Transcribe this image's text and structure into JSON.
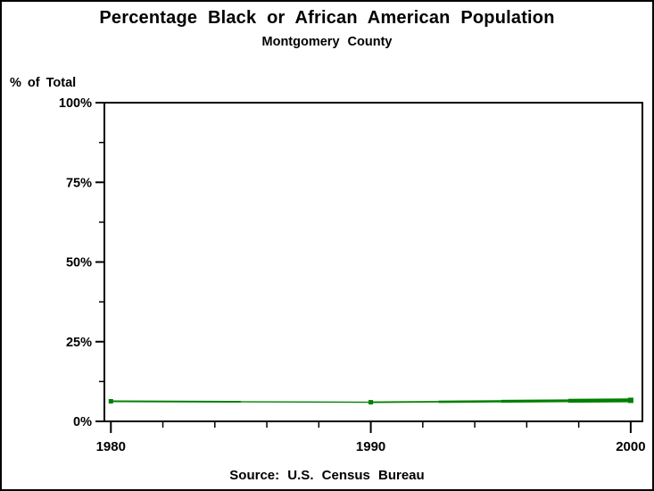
{
  "chart_data": {
    "type": "line",
    "title": "Percentage Black or African American Population",
    "subtitle": "Montgomery County",
    "ylabel": "% of Total",
    "footnote": "Source: U.S. Census Bureau",
    "x": [
      1980,
      1990,
      2000
    ],
    "values": [
      6.3,
      6.0,
      6.6
    ],
    "series_name": "percent-black-or-african-american",
    "xlim": [
      1979.75,
      2000.45
    ],
    "ylim": [
      0,
      100
    ],
    "yticks": [
      {
        "value": 0,
        "label": "0%"
      },
      {
        "value": 25,
        "label": "25%"
      },
      {
        "value": 50,
        "label": "50%"
      },
      {
        "value": 75,
        "label": "75%"
      },
      {
        "value": 100,
        "label": "100%"
      }
    ],
    "y_minor_ticks": [
      12.5,
      37.5,
      62.5,
      87.5
    ],
    "xticks": [
      {
        "value": 1980,
        "label": "1980"
      },
      {
        "value": 1990,
        "label": "1990"
      },
      {
        "value": 2000,
        "label": "2000"
      }
    ],
    "x_minor_ticks": [
      1982,
      1984,
      1986,
      1988,
      1992,
      1994,
      1996,
      1998
    ],
    "grid": false,
    "legend": "none",
    "line_color": "#008000",
    "axis_color": "#000000",
    "background_color": "#ffffff"
  }
}
